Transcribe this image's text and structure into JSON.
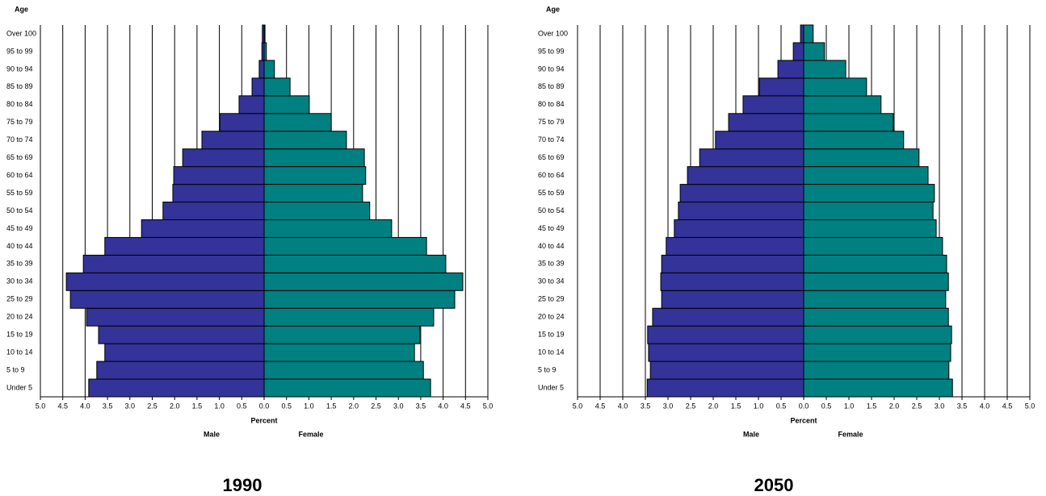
{
  "chart_data": [
    {
      "type": "pyramid",
      "caption": "1990",
      "y_label": "Age",
      "x_label": "Percent",
      "categories": [
        "Under 5",
        "5 to 9",
        "10 to 14",
        "15 to 19",
        "20 to 24",
        "25 to 29",
        "30 to 34",
        "35 to 39",
        "40 to 44",
        "45 to 49",
        "50 to 54",
        "55 to 59",
        "60 to 64",
        "65 to 69",
        "70 to 74",
        "75 to 79",
        "80 to 84",
        "85 to 89",
        "90 to 94",
        "95 to 99",
        "Over 100"
      ],
      "series": [
        {
          "name": "Male",
          "color": "#333399",
          "values": [
            3.92,
            3.74,
            3.56,
            3.7,
            3.97,
            4.33,
            4.42,
            4.04,
            3.56,
            2.74,
            2.26,
            2.04,
            2.02,
            1.82,
            1.39,
            0.99,
            0.56,
            0.27,
            0.11,
            0.05,
            0.04
          ]
        },
        {
          "name": "Female",
          "color": "#008080",
          "values": [
            3.72,
            3.56,
            3.36,
            3.48,
            3.79,
            4.26,
            4.44,
            4.06,
            3.63,
            2.85,
            2.36,
            2.2,
            2.27,
            2.24,
            1.84,
            1.5,
            1.01,
            0.58,
            0.23,
            0.05,
            0.02
          ]
        }
      ],
      "xlim": [
        0,
        5
      ],
      "xticks": [
        {
          "value": 0,
          "label": "0.0"
        },
        {
          "value": 0.5,
          "label": "0.5"
        },
        {
          "value": 1,
          "label": "1.0"
        },
        {
          "value": 1.5,
          "label": "1.5"
        },
        {
          "value": 2,
          "label": "2.0"
        },
        {
          "value": 2.5,
          "label": "2.5"
        },
        {
          "value": 3,
          "label": "3.0"
        },
        {
          "value": 3.5,
          "label": "3.5"
        },
        {
          "value": 4,
          "label": "4.0"
        },
        {
          "value": 4.5,
          "label": "4.5"
        },
        {
          "value": 5,
          "label": "5.0"
        }
      ],
      "grid": true
    },
    {
      "type": "pyramid",
      "caption": "2050",
      "y_label": "Age",
      "x_label": "Percent",
      "categories": [
        "Under 5",
        "5 to 9",
        "10 to 14",
        "15 to 19",
        "20 to 24",
        "25 to 29",
        "30 to 34",
        "35 to 39",
        "40 to 44",
        "45 to 49",
        "50 to 54",
        "55 to 59",
        "60 to 64",
        "65 to 69",
        "70 to 74",
        "75 to 79",
        "80 to 84",
        "85 to 89",
        "90 to 94",
        "95 to 99",
        "Over 100"
      ],
      "series": [
        {
          "name": "Male",
          "color": "#333399",
          "values": [
            3.46,
            3.39,
            3.43,
            3.45,
            3.34,
            3.14,
            3.16,
            3.14,
            3.04,
            2.86,
            2.77,
            2.73,
            2.57,
            2.3,
            1.95,
            1.66,
            1.34,
            0.98,
            0.57,
            0.23,
            0.07
          ]
        },
        {
          "name": "Female",
          "color": "#008080",
          "values": [
            3.29,
            3.21,
            3.25,
            3.27,
            3.2,
            3.14,
            3.2,
            3.16,
            3.07,
            2.93,
            2.86,
            2.89,
            2.75,
            2.55,
            2.21,
            1.98,
            1.71,
            1.39,
            0.93,
            0.46,
            0.21
          ]
        }
      ],
      "xlim": [
        0,
        5
      ],
      "xticks": [
        {
          "value": 0,
          "label": "0.0"
        },
        {
          "value": 0.5,
          "label": "0.5"
        },
        {
          "value": 1,
          "label": "1.0"
        },
        {
          "value": 1.5,
          "label": "1.5"
        },
        {
          "value": 2,
          "label": "2.0"
        },
        {
          "value": 2.5,
          "label": "2.5"
        },
        {
          "value": 3,
          "label": "3.0"
        },
        {
          "value": 3.5,
          "label": "3.5"
        },
        {
          "value": 4,
          "label": "4.0"
        },
        {
          "value": 4.5,
          "label": "4.5"
        },
        {
          "value": 5,
          "label": "5.0"
        }
      ],
      "grid": true
    }
  ]
}
